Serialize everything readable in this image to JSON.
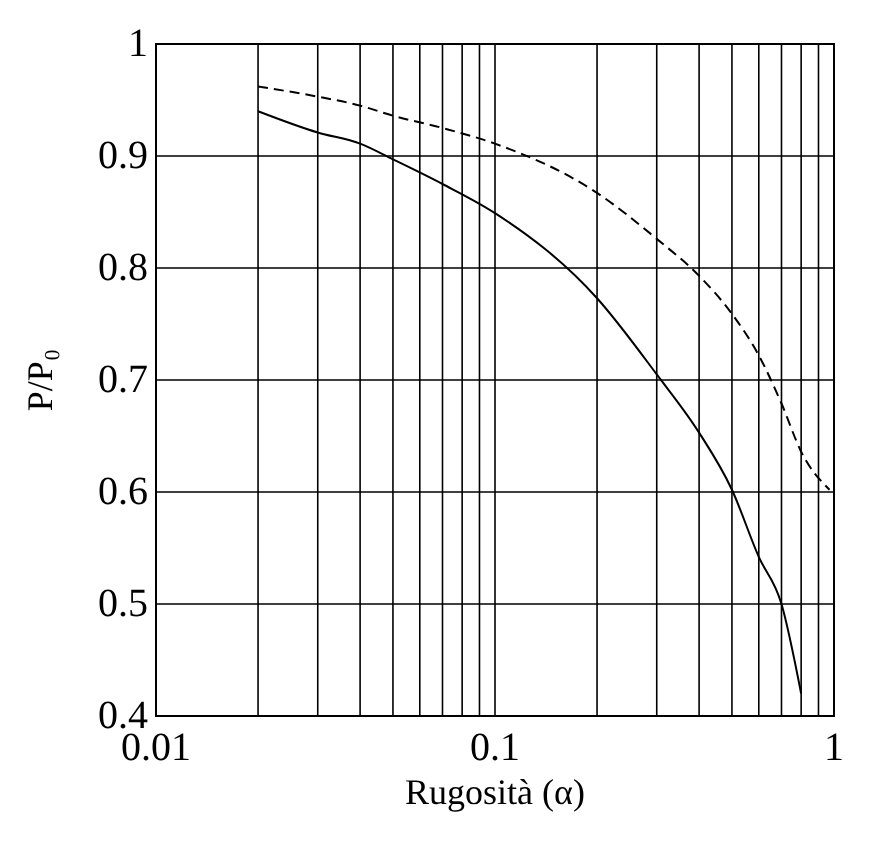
{
  "chart_data": {
    "type": "line",
    "xlabel": "Rugosità (α)",
    "ylabel": "P/P₀",
    "log": "x",
    "grid": true,
    "marker": "none",
    "xlim": [
      0.01,
      1
    ],
    "xticks": [
      0.01,
      {
        "value": 0.02,
        "label": null
      },
      {
        "value": 0.03,
        "label": null
      },
      {
        "value": 0.04,
        "label": null
      },
      {
        "value": 0.05,
        "label": null
      },
      {
        "value": 0.06,
        "label": null
      },
      {
        "value": 0.07,
        "label": null
      },
      {
        "value": 0.08,
        "label": null
      },
      {
        "value": 0.09,
        "label": null
      },
      0.1,
      {
        "value": 0.2,
        "label": null
      },
      {
        "value": 0.3,
        "label": null
      },
      {
        "value": 0.4,
        "label": null
      },
      {
        "value": 0.5,
        "label": null
      },
      {
        "value": 0.6,
        "label": null
      },
      {
        "value": 0.7,
        "label": null
      },
      {
        "value": 0.8,
        "label": null
      },
      {
        "value": 0.9,
        "label": null
      },
      1
    ],
    "ylim": [
      0.4,
      1
    ],
    "yticks": [
      0.4,
      0.5,
      0.6,
      0.7,
      0.8,
      0.9,
      1
    ],
    "x": [
      0.02,
      0.03,
      0.04,
      0.05,
      0.07,
      0.1,
      0.2,
      0.3,
      0.4,
      0.5,
      0.6,
      0.7,
      0.8
    ],
    "series": [
      {
        "color": "#000000",
        "line_style": "solid",
        "values": [
          0.94,
          0.921,
          0.911,
          0.897,
          0.875,
          0.849,
          0.773,
          0.705,
          0.653,
          0.602,
          0.542,
          0.5,
          0.42
        ]
      },
      {
        "color": "#000000",
        "line_style": "dashed",
        "x": [
          0.02,
          0.03,
          0.04,
          0.05,
          0.07,
          0.1,
          0.2,
          0.3,
          0.4,
          0.5,
          0.6,
          0.7,
          0.8,
          0.97
        ],
        "values": [
          0.962,
          0.953,
          0.945,
          0.936,
          0.925,
          0.911,
          0.867,
          0.826,
          0.793,
          0.759,
          0.722,
          0.679,
          0.636,
          0.602
        ]
      }
    ]
  }
}
